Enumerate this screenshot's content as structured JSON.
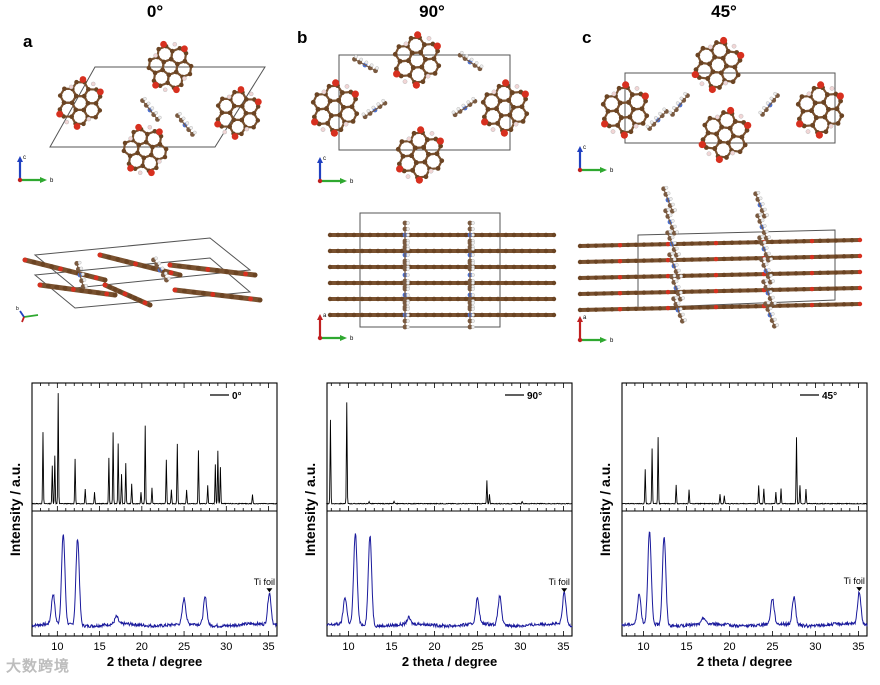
{
  "figure": {
    "angles": [
      "0°",
      "90°",
      "45°"
    ],
    "panel_letters": [
      "a",
      "b",
      "c"
    ],
    "axes_labels": {
      "c": "c",
      "b": "b",
      "a": "a"
    },
    "tifoil_label": "Ti foil",
    "watermark": "大数跨境"
  },
  "chart_data": [
    {
      "type": "line",
      "legend": "0°",
      "xlabel": "2 theta / degree",
      "ylabel": "Intensity / a.u.",
      "xlim": [
        7,
        36
      ],
      "xticks": [
        10,
        15,
        20,
        25,
        30,
        35
      ],
      "colors": {
        "top": "#000000",
        "bottom": "#1a1a9c"
      },
      "top_peaks": [
        [
          8.3,
          0.62
        ],
        [
          9.4,
          0.33
        ],
        [
          9.7,
          0.42
        ],
        [
          10.1,
          0.96
        ],
        [
          12.1,
          0.39
        ],
        [
          13.3,
          0.13
        ],
        [
          14.4,
          0.1
        ],
        [
          16.1,
          0.4
        ],
        [
          16.6,
          0.62
        ],
        [
          17.2,
          0.52
        ],
        [
          17.6,
          0.26
        ],
        [
          18.1,
          0.35
        ],
        [
          18.8,
          0.17
        ],
        [
          19.9,
          0.1
        ],
        [
          20.4,
          0.68
        ],
        [
          21.2,
          0.14
        ],
        [
          22.9,
          0.38
        ],
        [
          23.5,
          0.12
        ],
        [
          24.2,
          0.52
        ],
        [
          25.3,
          0.12
        ],
        [
          26.7,
          0.46
        ],
        [
          27.8,
          0.16
        ],
        [
          28.7,
          0.34
        ],
        [
          29.0,
          0.46
        ],
        [
          29.3,
          0.32
        ],
        [
          33.1,
          0.08
        ]
      ],
      "bottom_peaks": [
        [
          9.5,
          0.28
        ],
        [
          10.7,
          0.85
        ],
        [
          12.4,
          0.82
        ],
        [
          17.0,
          0.07
        ],
        [
          25.0,
          0.24
        ],
        [
          27.5,
          0.26
        ],
        [
          35.1,
          0.3
        ]
      ]
    },
    {
      "type": "line",
      "legend": "90°",
      "xlabel": "2 theta / degree",
      "ylabel": "Intensity / a.u.",
      "xlim": [
        7.5,
        36
      ],
      "xticks": [
        10,
        15,
        20,
        25,
        30,
        35
      ],
      "colors": {
        "top": "#000000",
        "bottom": "#1a1a9c"
      },
      "top_peaks": [
        [
          7.9,
          0.73
        ],
        [
          9.8,
          0.88
        ],
        [
          12.4,
          0.02
        ],
        [
          15.3,
          0.02
        ],
        [
          26.1,
          0.2
        ],
        [
          26.4,
          0.08
        ],
        [
          30.2,
          0.02
        ]
      ],
      "bottom_peaks": [
        [
          9.6,
          0.25
        ],
        [
          10.8,
          0.86
        ],
        [
          12.5,
          0.84
        ],
        [
          17.0,
          0.06
        ],
        [
          25.0,
          0.24
        ],
        [
          27.6,
          0.27
        ],
        [
          35.1,
          0.3
        ]
      ]
    },
    {
      "type": "line",
      "legend": "45°",
      "xlabel": "2 theta / degree",
      "ylabel": "Intensity / a.u.",
      "xlim": [
        7.5,
        36
      ],
      "xticks": [
        10,
        15,
        20,
        25,
        30,
        35
      ],
      "colors": {
        "top": "#000000",
        "bottom": "#1a1a9c"
      },
      "top_peaks": [
        [
          10.2,
          0.3
        ],
        [
          11.0,
          0.48
        ],
        [
          11.7,
          0.58
        ],
        [
          13.8,
          0.16
        ],
        [
          15.3,
          0.12
        ],
        [
          18.9,
          0.08
        ],
        [
          19.4,
          0.07
        ],
        [
          23.4,
          0.16
        ],
        [
          24.0,
          0.13
        ],
        [
          25.4,
          0.1
        ],
        [
          26.0,
          0.13
        ],
        [
          27.8,
          0.58
        ],
        [
          28.2,
          0.16
        ],
        [
          28.9,
          0.13
        ]
      ],
      "bottom_peaks": [
        [
          9.5,
          0.28
        ],
        [
          10.7,
          0.87
        ],
        [
          12.4,
          0.84
        ],
        [
          17.0,
          0.06
        ],
        [
          25.0,
          0.24
        ],
        [
          27.5,
          0.26
        ],
        [
          35.1,
          0.31
        ]
      ]
    }
  ]
}
